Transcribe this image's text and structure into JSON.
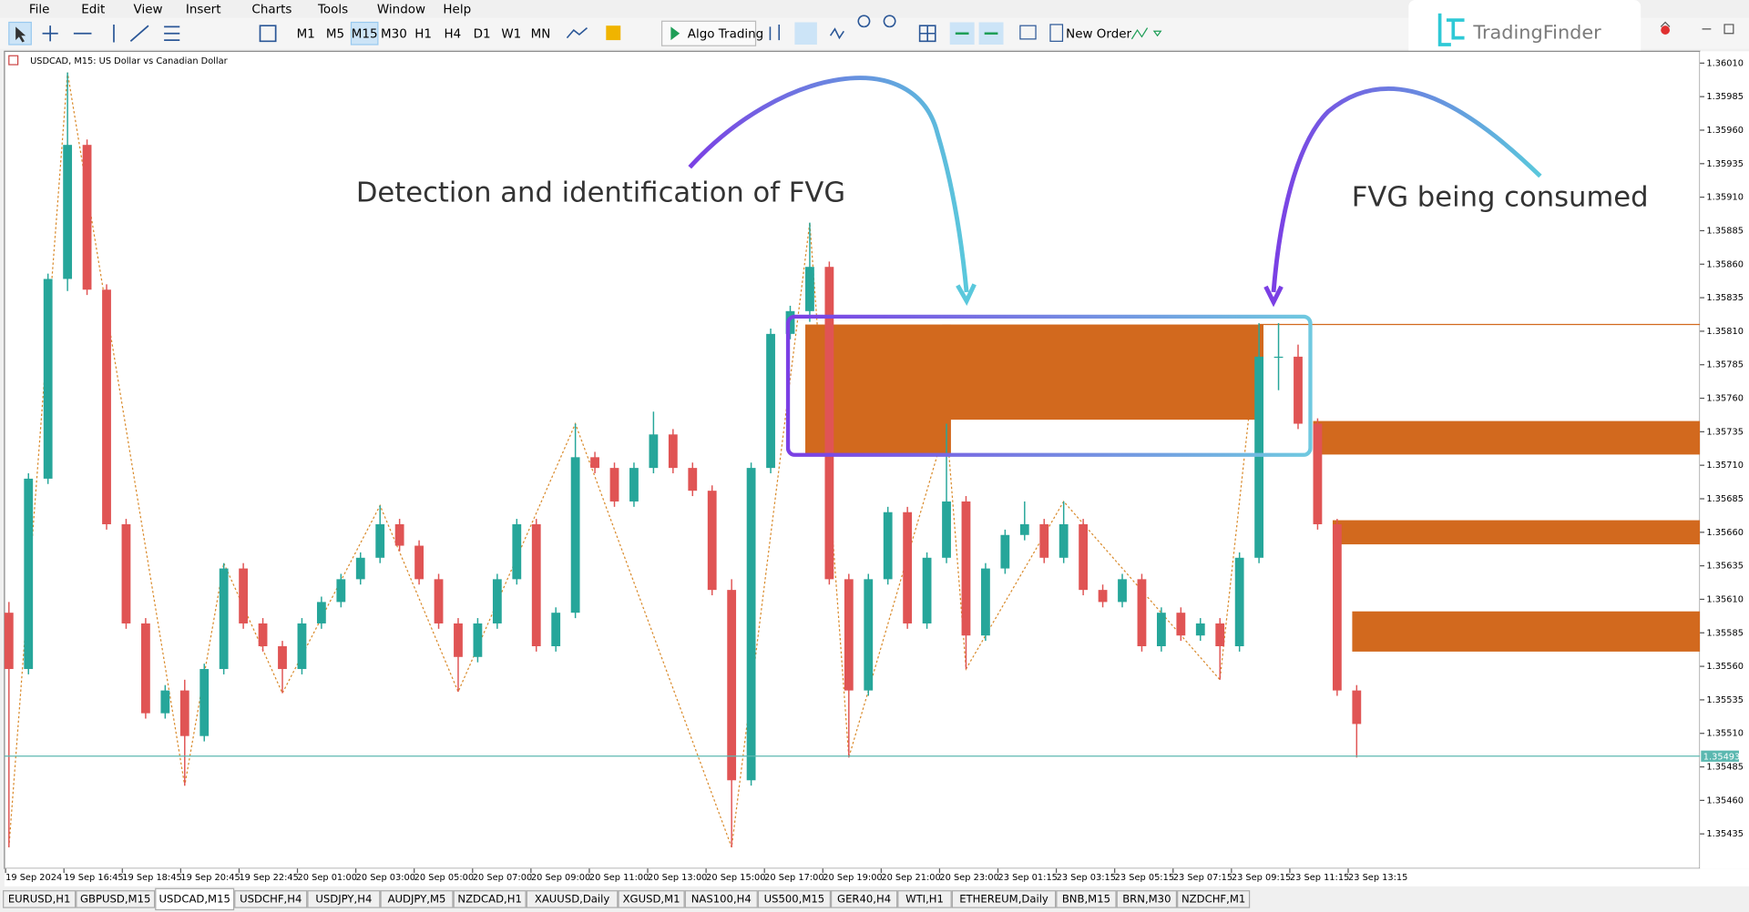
{
  "menu": [
    "File",
    "Edit",
    "View",
    "Insert",
    "Charts",
    "Tools",
    "Window",
    "Help"
  ],
  "toolbar": {
    "timeframes": [
      "M1",
      "M5",
      "M15",
      "M30",
      "H1",
      "H4",
      "D1",
      "W1",
      "MN"
    ],
    "active_timeframe": "M15",
    "algo_trading": "Algo Trading",
    "new_order": "New Order"
  },
  "logo": "TradingFinder",
  "chart_data": {
    "type": "candlestick",
    "title": "USDCAD, M15:  US Dollar vs Canadian Dollar",
    "up_color": "#26a69a",
    "down_color": "#e05454",
    "fvg_color": "#d2691e",
    "zigzag_color": "#d98a2b",
    "price_line_color": "#5bb8b0",
    "candles": [
      [
        1.356,
        1.35608,
        1.35425,
        1.35558
      ],
      [
        1.35558,
        1.35704,
        1.35554,
        1.357
      ],
      [
        1.357,
        1.35853,
        1.35696,
        1.35849
      ],
      [
        1.35849,
        1.36003,
        1.3584,
        1.35949
      ],
      [
        1.35949,
        1.35953,
        1.35837,
        1.35841
      ],
      [
        1.35841,
        1.35845,
        1.35662,
        1.35666
      ],
      [
        1.35666,
        1.3567,
        1.35588,
        1.35592
      ],
      [
        1.35592,
        1.35596,
        1.35521,
        1.35525
      ],
      [
        1.35525,
        1.35546,
        1.35521,
        1.35542
      ],
      [
        1.35542,
        1.3555,
        1.35471,
        1.35508
      ],
      [
        1.35508,
        1.35562,
        1.35504,
        1.35558
      ],
      [
        1.35558,
        1.35637,
        1.35554,
        1.35633
      ],
      [
        1.35633,
        1.35637,
        1.35588,
        1.35592
      ],
      [
        1.35592,
        1.35596,
        1.35571,
        1.35575
      ],
      [
        1.35575,
        1.35579,
        1.3554,
        1.35558
      ],
      [
        1.35558,
        1.35596,
        1.35554,
        1.35592
      ],
      [
        1.35592,
        1.35612,
        1.35588,
        1.35608
      ],
      [
        1.35608,
        1.35629,
        1.35604,
        1.35625
      ],
      [
        1.35625,
        1.35645,
        1.35621,
        1.35641
      ],
      [
        1.35641,
        1.3568,
        1.35637,
        1.35666
      ],
      [
        1.35666,
        1.3567,
        1.35646,
        1.3565
      ],
      [
        1.3565,
        1.35654,
        1.35621,
        1.35625
      ],
      [
        1.35625,
        1.35629,
        1.35588,
        1.35592
      ],
      [
        1.35592,
        1.35596,
        1.35541,
        1.35567
      ],
      [
        1.35567,
        1.35596,
        1.35563,
        1.35592
      ],
      [
        1.35592,
        1.35629,
        1.35588,
        1.35625
      ],
      [
        1.35625,
        1.3567,
        1.35621,
        1.35666
      ],
      [
        1.35666,
        1.3567,
        1.35571,
        1.35575
      ],
      [
        1.35575,
        1.35604,
        1.35571,
        1.356
      ],
      [
        1.356,
        1.35741,
        1.35596,
        1.35716
      ],
      [
        1.35716,
        1.3572,
        1.35704,
        1.35708
      ],
      [
        1.35708,
        1.35712,
        1.35679,
        1.35683
      ],
      [
        1.35683,
        1.35712,
        1.35679,
        1.35708
      ],
      [
        1.35708,
        1.3575,
        1.35704,
        1.35733
      ],
      [
        1.35733,
        1.35737,
        1.35704,
        1.35708
      ],
      [
        1.35708,
        1.35712,
        1.35687,
        1.35691
      ],
      [
        1.35691,
        1.35695,
        1.35613,
        1.35617
      ],
      [
        1.35617,
        1.35625,
        1.35425,
        1.35475
      ],
      [
        1.35475,
        1.35712,
        1.35471,
        1.35708
      ],
      [
        1.35708,
        1.35812,
        1.35704,
        1.35808
      ],
      [
        1.35808,
        1.35829,
        1.35804,
        1.35825
      ],
      [
        1.35825,
        1.35891,
        1.35817,
        1.35858
      ],
      [
        1.35858,
        1.35862,
        1.35621,
        1.35625
      ],
      [
        1.35625,
        1.35629,
        1.35492,
        1.35542
      ],
      [
        1.35542,
        1.35629,
        1.35538,
        1.35625
      ],
      [
        1.35625,
        1.35679,
        1.35621,
        1.35675
      ],
      [
        1.35675,
        1.35679,
        1.35588,
        1.35592
      ],
      [
        1.35592,
        1.35645,
        1.35588,
        1.35641
      ],
      [
        1.35641,
        1.35741,
        1.35637,
        1.35683
      ],
      [
        1.35683,
        1.35687,
        1.35558,
        1.35583
      ],
      [
        1.35583,
        1.35637,
        1.35579,
        1.35633
      ],
      [
        1.35633,
        1.35662,
        1.35629,
        1.35658
      ],
      [
        1.35658,
        1.35683,
        1.35654,
        1.35666
      ],
      [
        1.35666,
        1.3567,
        1.35637,
        1.35641
      ],
      [
        1.35641,
        1.35683,
        1.35637,
        1.35666
      ],
      [
        1.35666,
        1.3567,
        1.35613,
        1.35617
      ],
      [
        1.35617,
        1.35621,
        1.35604,
        1.35608
      ],
      [
        1.35608,
        1.35629,
        1.35604,
        1.35625
      ],
      [
        1.35625,
        1.35629,
        1.35571,
        1.35575
      ],
      [
        1.35575,
        1.35604,
        1.35571,
        1.356
      ],
      [
        1.356,
        1.35604,
        1.35579,
        1.35583
      ],
      [
        1.35583,
        1.35596,
        1.35579,
        1.35592
      ],
      [
        1.35592,
        1.35596,
        1.3555,
        1.35575
      ],
      [
        1.35575,
        1.35645,
        1.35571,
        1.35641
      ],
      [
        1.35641,
        1.35816,
        1.35637,
        1.35791
      ],
      [
        1.35791,
        1.35816,
        1.35766,
        1.35791
      ],
      [
        1.35791,
        1.358,
        1.35737,
        1.35741
      ],
      [
        1.35741,
        1.35745,
        1.35662,
        1.35666
      ],
      [
        1.35666,
        1.3567,
        1.35538,
        1.35542
      ],
      [
        1.35542,
        1.35546,
        1.35492,
        1.35517
      ]
    ],
    "x_labels": [
      "19 Sep 2024",
      "19 Sep 16:45",
      "19 Sep 18:45",
      "19 Sep 20:45",
      "19 Sep 22:45",
      "20 Sep 01:00",
      "20 Sep 03:00",
      "20 Sep 05:00",
      "20 Sep 07:00",
      "20 Sep 09:00",
      "20 Sep 11:00",
      "20 Sep 13:00",
      "20 Sep 15:00",
      "20 Sep 17:00",
      "20 Sep 19:00",
      "20 Sep 21:00",
      "20 Sep 23:00",
      "23 Sep 01:15",
      "23 Sep 03:15",
      "23 Sep 05:15",
      "23 Sep 07:15",
      "23 Sep 09:15",
      "23 Sep 11:15",
      "23 Sep 13:15"
    ],
    "ylim": [
      1.3541,
      1.36018
    ],
    "yticks": [
      {
        "value": 1.3601,
        "label": "1.36010"
      },
      1.35985,
      {
        "value": 1.3596,
        "label": "1.35960"
      },
      1.35935,
      {
        "value": 1.3591,
        "label": "1.35910"
      },
      1.35885,
      {
        "value": 1.3586,
        "label": "1.35860"
      },
      1.35835,
      {
        "value": 1.3581,
        "label": "1.35810"
      },
      1.35785,
      {
        "value": 1.3576,
        "label": "1.35760"
      },
      1.35735,
      {
        "value": 1.3571,
        "label": "1.35710"
      },
      1.35685,
      {
        "value": 1.3566,
        "label": "1.35660"
      },
      1.35635,
      {
        "value": 1.3561,
        "label": "1.35610"
      },
      1.35585,
      {
        "value": 1.3556,
        "label": "1.35560"
      },
      1.35535,
      {
        "value": 1.3551,
        "label": "1.35510"
      },
      1.35485,
      {
        "value": 1.3546,
        "label": "1.35460"
      },
      1.35435
    ],
    "current_price": 1.35493,
    "fvg_zones": [
      {
        "from": 41,
        "to": 48,
        "high": 1.35815,
        "low": 1.35718
      },
      {
        "from": 48,
        "to": 64,
        "high": 1.35815,
        "low": 1.35744
      },
      {
        "from": 67,
        "high": 1.35743,
        "low": 1.35718
      },
      {
        "from": 68,
        "high": 1.35669,
        "low": 1.35651
      },
      {
        "from": 69,
        "high": 1.35601,
        "low": 1.35571
      }
    ],
    "levels": [
      {
        "from": 64,
        "price": 1.35815
      }
    ],
    "zigzag": {
      "index": [
        0,
        3,
        9,
        11,
        14,
        19,
        23,
        29,
        37,
        41,
        43,
        48,
        49,
        54,
        62,
        64
      ],
      "price": [
        1.35425,
        1.36003,
        1.35471,
        1.35637,
        1.3554,
        1.3568,
        1.35541,
        1.35741,
        1.35425,
        1.35891,
        1.35492,
        1.35741,
        1.35558,
        1.35683,
        1.3555,
        1.35816
      ]
    },
    "annotations": [
      "Detection and identification of FVG",
      "FVG being consumed"
    ]
  },
  "tabs": [
    "EURUSD,H1",
    "GBPUSD,M15",
    "USDCAD,M15",
    "USDCHF,H4",
    "USDJPY,H4",
    "AUDJPY,M5",
    "NZDCAD,H1",
    "XAUUSD,Daily",
    "XGUSD,M1",
    "NAS100,H4",
    "US500,M15",
    "GER40,H4",
    "WTI,H1",
    "ETHEREUM,Daily",
    "BNB,M15",
    "BRN,M30",
    "NZDCHF,M1"
  ],
  "active_tab": "USDCAD,M15"
}
